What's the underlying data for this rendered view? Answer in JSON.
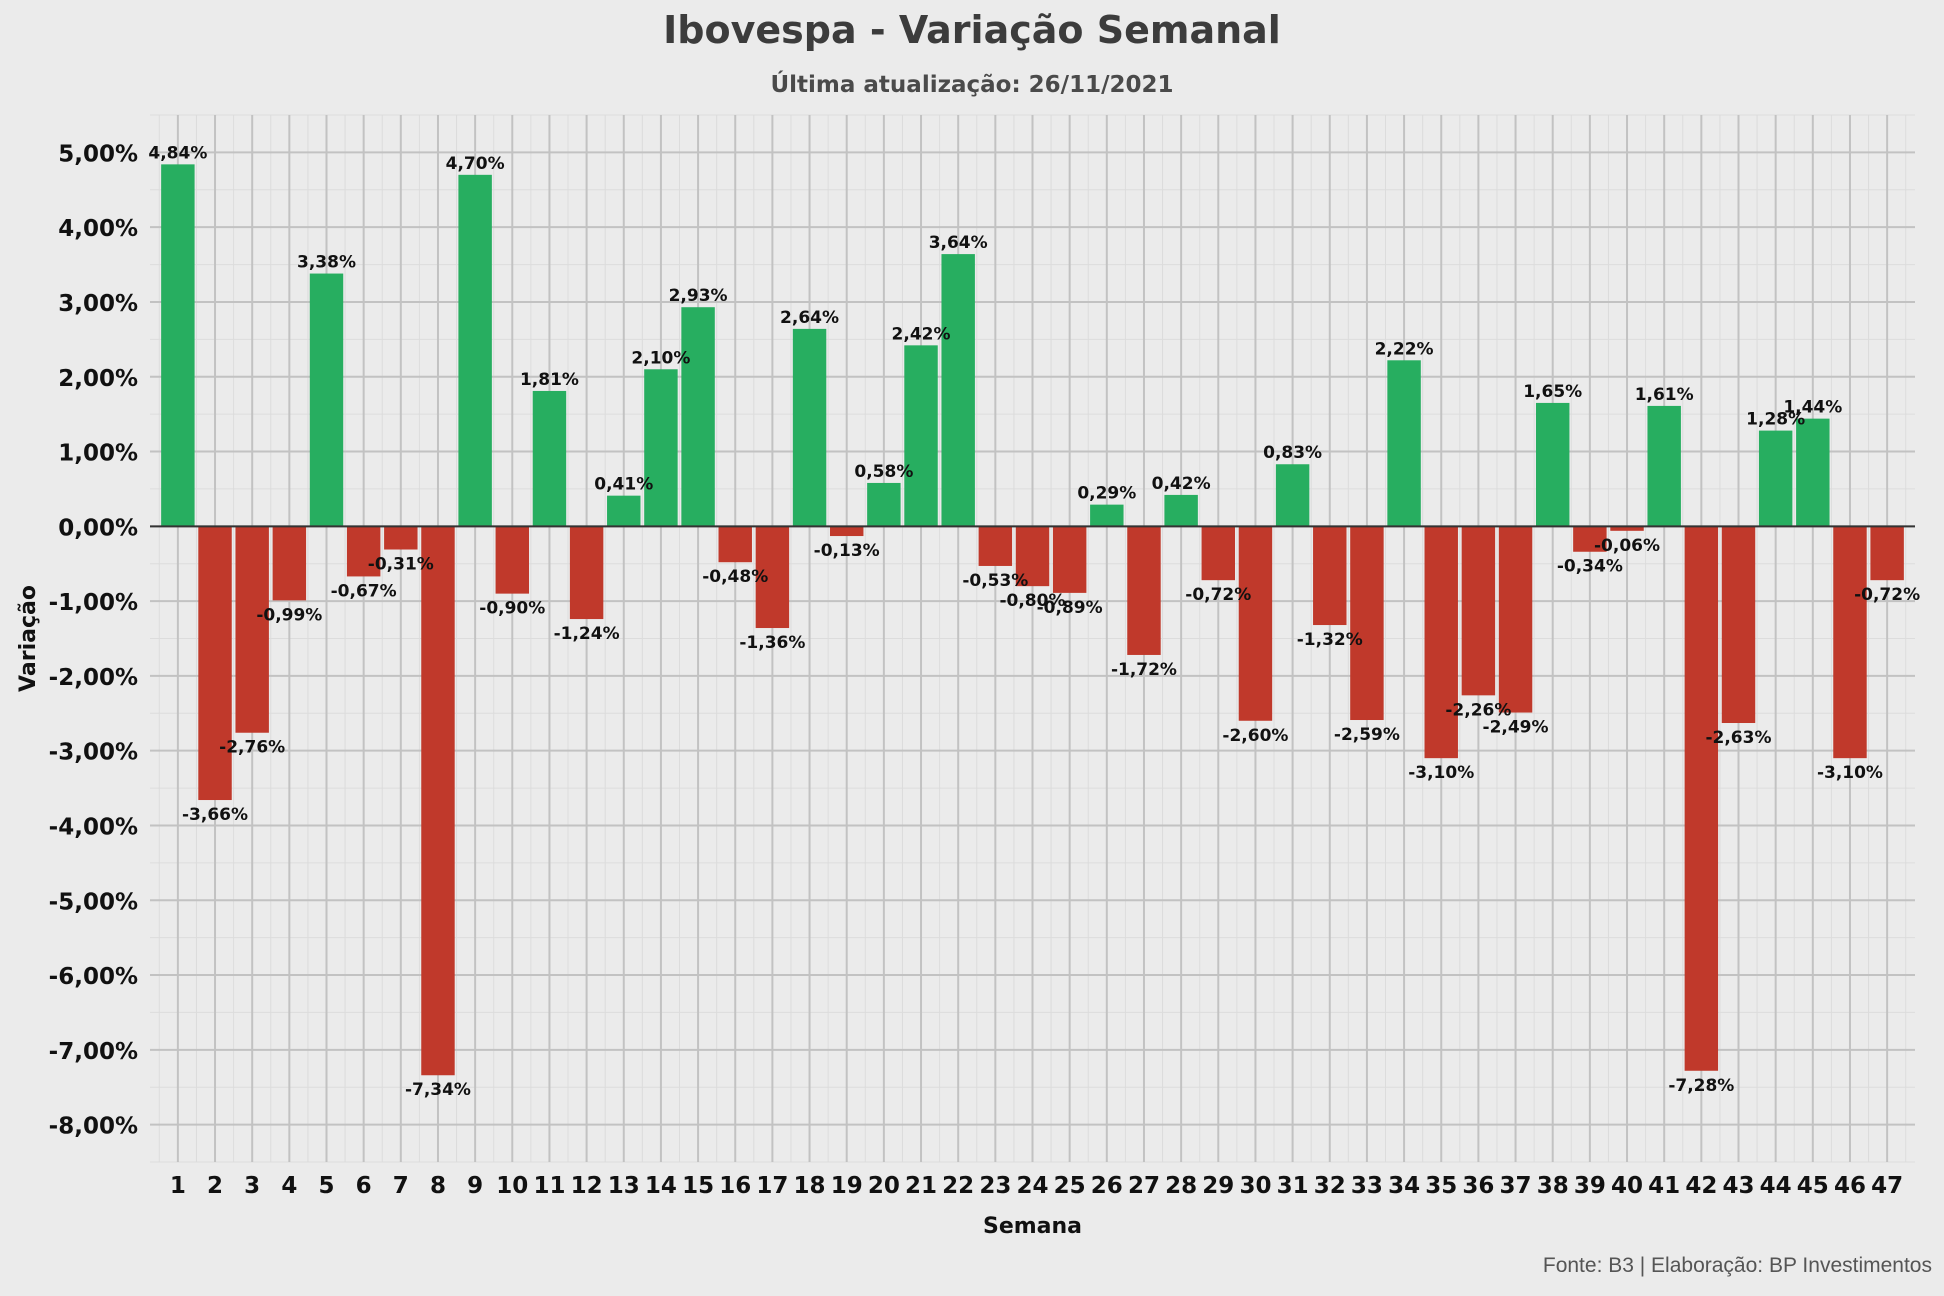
{
  "chart_data": {
    "type": "bar",
    "title": "Ibovespa - Variação Semanal",
    "subtitle": "Última atualização: 26/11/2021",
    "xlabel": "Semana",
    "ylabel": "Variação",
    "caption": "Fonte: B3 | Elaboração: BP Investimentos",
    "ylim": [
      -8.5,
      5.5
    ],
    "yticks": [
      5,
      4,
      3,
      2,
      1,
      0,
      -1,
      -2,
      -3,
      -4,
      -5,
      -6,
      -7,
      -8
    ],
    "ytick_labels": [
      "5,00%",
      "4,00%",
      "3,00%",
      "2,00%",
      "1,00%",
      "0,00%",
      "-1,00%",
      "-2,00%",
      "-3,00%",
      "-4,00%",
      "-5,00%",
      "-6,00%",
      "-7,00%",
      "-8,00%"
    ],
    "categories": [
      "1",
      "2",
      "3",
      "4",
      "5",
      "6",
      "7",
      "8",
      "9",
      "10",
      "11",
      "12",
      "13",
      "14",
      "15",
      "16",
      "17",
      "18",
      "19",
      "20",
      "21",
      "22",
      "23",
      "24",
      "25",
      "26",
      "27",
      "28",
      "29",
      "30",
      "31",
      "32",
      "33",
      "34",
      "35",
      "36",
      "37",
      "38",
      "39",
      "40",
      "41",
      "42",
      "43",
      "44",
      "45",
      "46",
      "47"
    ],
    "values": [
      4.84,
      -3.66,
      -2.76,
      -0.99,
      3.38,
      -0.67,
      -0.31,
      -7.34,
      4.7,
      -0.9,
      1.81,
      -1.24,
      0.41,
      2.1,
      2.93,
      -0.48,
      -1.36,
      2.64,
      -0.13,
      0.58,
      2.42,
      3.64,
      -0.53,
      -0.8,
      -0.89,
      0.29,
      -1.72,
      0.42,
      -0.72,
      -2.6,
      0.83,
      -1.32,
      -2.59,
      2.22,
      -3.1,
      -2.26,
      -2.49,
      1.65,
      -0.34,
      -0.06,
      1.61,
      -7.28,
      -2.63,
      1.28,
      1.44,
      -3.1,
      -0.72
    ],
    "data_labels": [
      "4,84%",
      "-3,66%",
      "-2,76%",
      "-0,99%",
      "3,38%",
      "-0,67%",
      "-0,31%",
      "-7,34%",
      "4,70%",
      "-0,90%",
      "1,81%",
      "-1,24%",
      "0,41%",
      "2,10%",
      "2,93%",
      "-0,48%",
      "-1,36%",
      "2,64%",
      "-0,13%",
      "0,58%",
      "2,42%",
      "3,64%",
      "-0,53%",
      "-0,80%",
      "-0,89%",
      "0,29%",
      "-1,72%",
      "0,42%",
      "-0,72%",
      "-2,60%",
      "0,83%",
      "-1,32%",
      "-2,59%",
      "2,22%",
      "-3,10%",
      "-2,26%",
      "-2,49%",
      "1,65%",
      "-0,34%",
      "-0,06%",
      "1,61%",
      "-7,28%",
      "-2,63%",
      "1,28%",
      "1,44%",
      "-3,10%",
      "-0,72%"
    ],
    "grid": true,
    "legend": "none",
    "colors": {
      "positive": "#27ae60",
      "negative": "#c0392b",
      "background": "#ebebeb",
      "grid_major": "#c2c2c2",
      "grid_minor": "#dcdcdc"
    }
  }
}
